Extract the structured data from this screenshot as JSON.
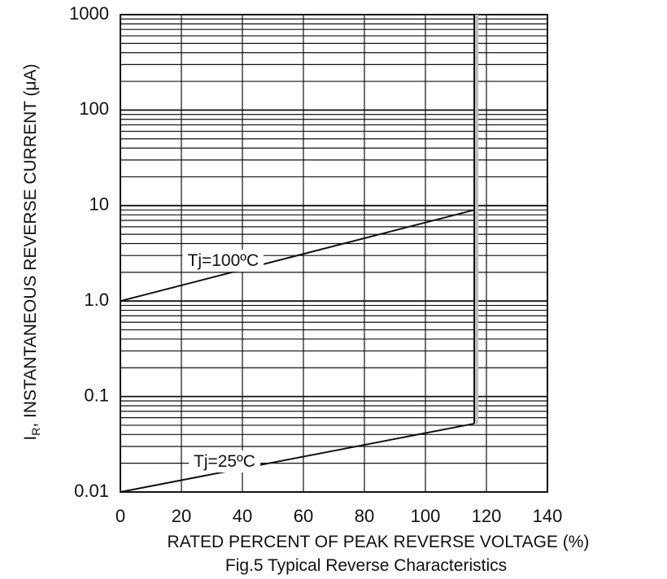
{
  "chart_data": {
    "type": "line",
    "title": "",
    "caption": "Fig.5 Typical Reverse Characteristics",
    "xlabel": "RATED PERCENT OF PEAK REVERSE VOLTAGE (%)",
    "ylabel_prefix": "I",
    "ylabel_sub": "R",
    "ylabel_rest": ", INSTANTANEOUS REVERSE CURRENT (μA)",
    "xlim": [
      0,
      140
    ],
    "ylim": [
      0.01,
      1000
    ],
    "yscale": "log",
    "grid": true,
    "x_ticks": [
      0,
      20,
      40,
      60,
      80,
      100,
      120,
      140
    ],
    "x_tick_labels": [
      "0",
      "20",
      "40",
      "60",
      "80",
      "100",
      "120",
      "140"
    ],
    "y_ticks": [
      0.01,
      0.1,
      1,
      10,
      100,
      1000
    ],
    "y_tick_labels": [
      "0.01",
      "0.1",
      "1.0",
      "10",
      "100",
      "1000"
    ],
    "rated_limit_x": 116,
    "series": [
      {
        "name": "Tj=100ºC",
        "x": [
          0,
          116
        ],
        "y": [
          1.0,
          9.0
        ]
      },
      {
        "name": "Tj=25ºC",
        "x": [
          0,
          116
        ],
        "y": [
          0.01,
          0.052
        ]
      }
    ],
    "colors": {
      "line": "#111111",
      "grid": "#111111",
      "background": "#ffffff"
    }
  }
}
